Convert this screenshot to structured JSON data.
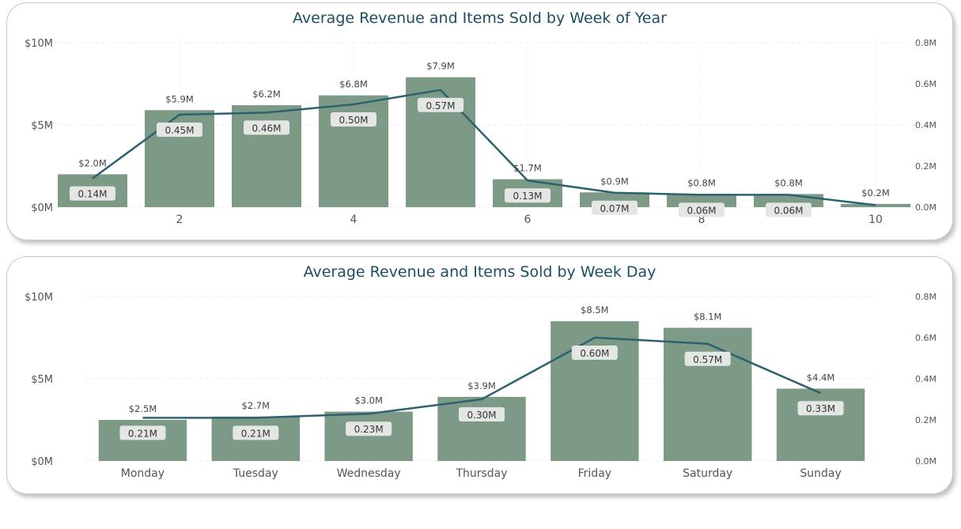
{
  "colors": {
    "bar": "#7d9a86",
    "line": "#2c6270",
    "title": "#1d4e63",
    "label_bg": "#e4e6e4"
  },
  "chart_data": [
    {
      "type": "bar",
      "title": "Average Revenue and Items Sold by Week of Year",
      "x": [
        1,
        2,
        3,
        4,
        5,
        6,
        7,
        8,
        9,
        10
      ],
      "x_tick_labels": [
        "2",
        "4",
        "6",
        "8",
        "10"
      ],
      "x_tick_values": [
        2,
        4,
        6,
        8,
        10
      ],
      "y_tick_labels": [
        "$10M",
        "$5M",
        "$0M"
      ],
      "y2_tick_labels": [
        "0.8M",
        "0.6M",
        "0.4M",
        "0.2M",
        "0.0M"
      ],
      "ylim": [
        0,
        10
      ],
      "y2lim": [
        0,
        0.8
      ],
      "series": [
        {
          "type": "bar",
          "values": [
            2.0,
            5.9,
            6.2,
            6.8,
            7.9,
            1.7,
            0.9,
            0.8,
            0.8,
            0.2
          ],
          "labels": [
            "$2.0M",
            "$5.9M",
            "$6.2M",
            "$6.8M",
            "$7.9M",
            "$1.7M",
            "$0.9M",
            "$0.8M",
            "$0.8M",
            "$0.2M"
          ]
        },
        {
          "type": "line",
          "axis": "right",
          "values": [
            0.14,
            0.45,
            0.46,
            0.5,
            0.57,
            0.13,
            0.07,
            0.06,
            0.06,
            0.01
          ],
          "labels": [
            "0.14M",
            "0.45M",
            "0.46M",
            "0.50M",
            "0.57M",
            "0.13M",
            "0.07M",
            "0.06M",
            "0.06M",
            ""
          ]
        }
      ],
      "grid": true
    },
    {
      "type": "bar",
      "title": "Average Revenue and Items Sold by Week Day",
      "categories": [
        "Monday",
        "Tuesday",
        "Wednesday",
        "Thursday",
        "Friday",
        "Saturday",
        "Sunday"
      ],
      "y_tick_labels": [
        "$10M",
        "$5M",
        "$0M"
      ],
      "y2_tick_labels": [
        "0.8M",
        "0.6M",
        "0.4M",
        "0.2M",
        "0.0M"
      ],
      "ylim": [
        0,
        10
      ],
      "y2lim": [
        0,
        0.8
      ],
      "series": [
        {
          "type": "bar",
          "values": [
            2.5,
            2.7,
            3.0,
            3.9,
            8.5,
            8.1,
            4.4
          ],
          "labels": [
            "$2.5M",
            "$2.7M",
            "$3.0M",
            "$3.9M",
            "$8.5M",
            "$8.1M",
            "$4.4M"
          ]
        },
        {
          "type": "line",
          "axis": "right",
          "values": [
            0.21,
            0.21,
            0.23,
            0.3,
            0.6,
            0.57,
            0.33
          ],
          "labels": [
            "0.21M",
            "0.21M",
            "0.23M",
            "0.30M",
            "0.60M",
            "0.57M",
            "0.33M"
          ]
        }
      ],
      "grid": true
    }
  ]
}
